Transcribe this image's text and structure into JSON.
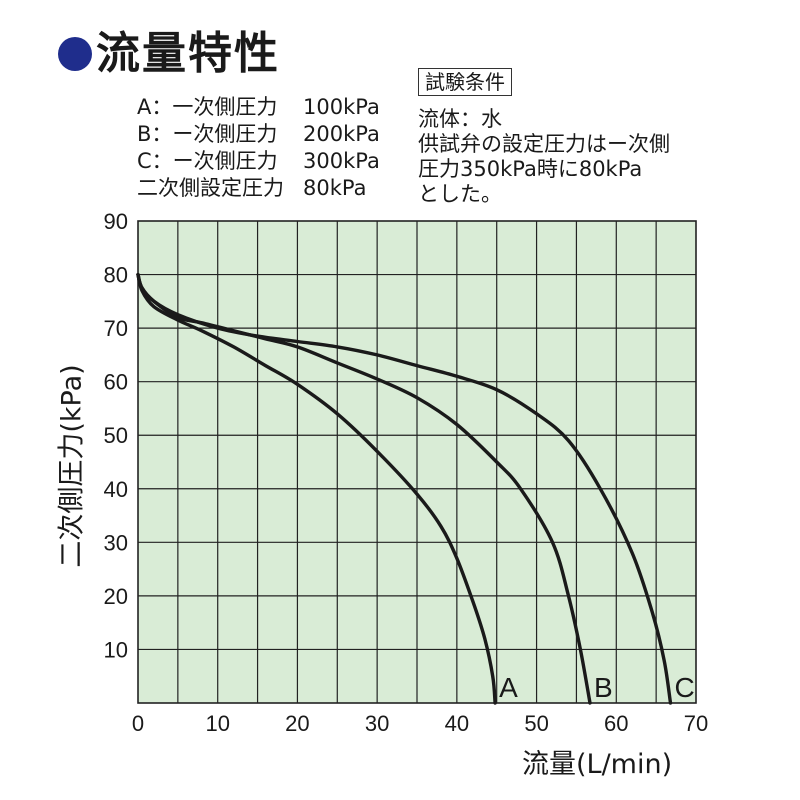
{
  "title": "流量特性",
  "legend": [
    {
      "label": "A：一次側圧力",
      "value": "100kPa"
    },
    {
      "label": "B：ー次側圧力",
      "value": "200kPa"
    },
    {
      "label": "C：ー次側圧力",
      "value": "300kPa"
    },
    {
      "label": "二次側設定圧力",
      "value": "80kPa"
    }
  ],
  "conditions": {
    "heading": "試験条件",
    "lines": [
      "流体：水",
      "供試弁の設定圧力はー次側",
      "圧力350kPa時に80kPa",
      "とした。"
    ]
  },
  "colors": {
    "plot_bg": "#d9ecd6",
    "grid": "#222222",
    "curve": "#1a1a1a",
    "title_dot": "#1f2d8c"
  },
  "chart_data": {
    "type": "line",
    "xlabel": "流量(L/min)",
    "ylabel": "二次側圧力(kPa)",
    "xlim": [
      0,
      70
    ],
    "ylim": [
      0,
      90
    ],
    "xticks": [
      0,
      10,
      20,
      30,
      40,
      50,
      60,
      70
    ],
    "yticks": [
      10,
      20,
      30,
      40,
      50,
      60,
      70,
      80,
      90
    ],
    "grid": true,
    "series": [
      {
        "name": "A",
        "points": [
          [
            0,
            80
          ],
          [
            0.5,
            77
          ],
          [
            2,
            74
          ],
          [
            5,
            71.5
          ],
          [
            8,
            69.5
          ],
          [
            12,
            66.5
          ],
          [
            16,
            63
          ],
          [
            20,
            59.5
          ],
          [
            25,
            54
          ],
          [
            30,
            47
          ],
          [
            35,
            39
          ],
          [
            38,
            33
          ],
          [
            40,
            27
          ],
          [
            42,
            19
          ],
          [
            43.5,
            12
          ],
          [
            44.5,
            5
          ],
          [
            44.8,
            0
          ]
        ]
      },
      {
        "name": "B",
        "points": [
          [
            0,
            80
          ],
          [
            0.5,
            77.5
          ],
          [
            2,
            75
          ],
          [
            5,
            72
          ],
          [
            8,
            71
          ],
          [
            12,
            69.5
          ],
          [
            16,
            68
          ],
          [
            20,
            66.5
          ],
          [
            25,
            63.5
          ],
          [
            30,
            60.5
          ],
          [
            35,
            57
          ],
          [
            40,
            52
          ],
          [
            45,
            45
          ],
          [
            48,
            40
          ],
          [
            52,
            30
          ],
          [
            54,
            20
          ],
          [
            55.5,
            10
          ],
          [
            56.7,
            0
          ]
        ]
      },
      {
        "name": "C",
        "points": [
          [
            0,
            80
          ],
          [
            0.5,
            77.5
          ],
          [
            2,
            75
          ],
          [
            5,
            72.5
          ],
          [
            10,
            70
          ],
          [
            15,
            68.5
          ],
          [
            20,
            67.5
          ],
          [
            25,
            66.5
          ],
          [
            30,
            65
          ],
          [
            35,
            63
          ],
          [
            40,
            61
          ],
          [
            45,
            58.5
          ],
          [
            50,
            54
          ],
          [
            54,
            49
          ],
          [
            58,
            40
          ],
          [
            62,
            28
          ],
          [
            64.5,
            17
          ],
          [
            66,
            8
          ],
          [
            66.8,
            0
          ]
        ]
      }
    ]
  }
}
